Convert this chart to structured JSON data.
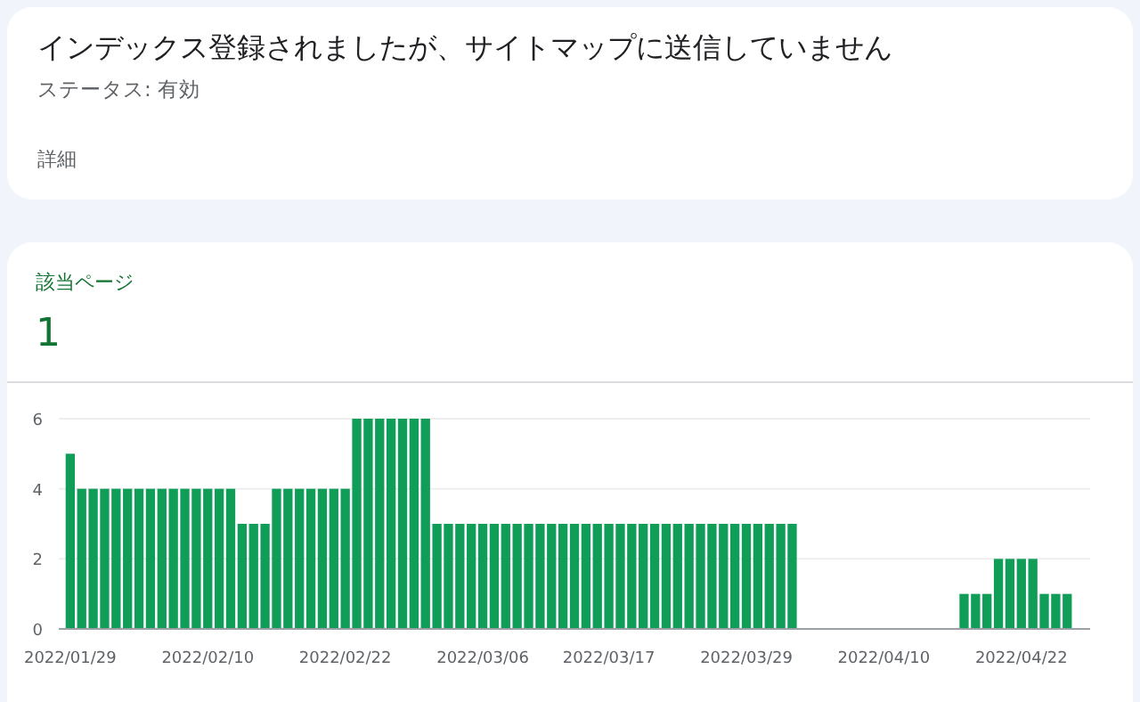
{
  "chart_data": {
    "type": "bar",
    "title": "インデックス登録されましたが、サイトマップに送信していません",
    "subtitle": "ステータス: 有効",
    "annotations": [
      "詳細",
      "該当ページ",
      "1"
    ],
    "x": [
      "2022-01-29",
      "2022-01-30",
      "2022-01-31",
      "2022-02-01",
      "2022-02-02",
      "2022-02-03",
      "2022-02-04",
      "2022-02-05",
      "2022-02-06",
      "2022-02-07",
      "2022-02-08",
      "2022-02-09",
      "2022-02-10",
      "2022-02-11",
      "2022-02-12",
      "2022-02-13",
      "2022-02-14",
      "2022-02-15",
      "2022-02-16",
      "2022-02-17",
      "2022-02-18",
      "2022-02-19",
      "2022-02-20",
      "2022-02-21",
      "2022-02-22",
      "2022-02-23",
      "2022-02-24",
      "2022-02-25",
      "2022-02-26",
      "2022-02-27",
      "2022-02-28",
      "2022-03-01",
      "2022-03-02",
      "2022-03-03",
      "2022-03-04",
      "2022-03-05",
      "2022-03-06",
      "2022-03-07",
      "2022-03-08",
      "2022-03-09",
      "2022-03-10",
      "2022-03-11",
      "2022-03-12",
      "2022-03-13",
      "2022-03-14",
      "2022-03-15",
      "2022-03-16",
      "2022-03-17",
      "2022-03-18",
      "2022-03-19",
      "2022-03-20",
      "2022-03-21",
      "2022-03-22",
      "2022-03-23",
      "2022-03-24",
      "2022-03-25",
      "2022-03-26",
      "2022-03-27",
      "2022-03-28",
      "2022-03-29",
      "2022-03-30",
      "2022-03-31",
      "2022-04-01",
      "2022-04-02",
      "2022-04-03",
      "2022-04-04",
      "2022-04-05",
      "2022-04-06",
      "2022-04-07",
      "2022-04-08",
      "2022-04-09",
      "2022-04-10",
      "2022-04-11",
      "2022-04-12",
      "2022-04-13",
      "2022-04-14",
      "2022-04-15",
      "2022-04-16",
      "2022-04-17",
      "2022-04-18",
      "2022-04-19",
      "2022-04-20",
      "2022-04-21",
      "2022-04-22",
      "2022-04-23",
      "2022-04-24",
      "2022-04-25",
      "2022-04-26"
    ],
    "values": [
      5,
      4,
      4,
      4,
      4,
      4,
      4,
      4,
      4,
      4,
      4,
      4,
      4,
      4,
      4,
      3,
      3,
      3,
      4,
      4,
      4,
      4,
      4,
      4,
      4,
      6,
      6,
      6,
      6,
      6,
      6,
      6,
      3,
      3,
      3,
      3,
      3,
      3,
      3,
      3,
      3,
      3,
      3,
      3,
      3,
      3,
      3,
      3,
      3,
      3,
      3,
      3,
      3,
      3,
      3,
      3,
      3,
      3,
      3,
      3,
      3,
      3,
      3,
      3,
      0,
      0,
      0,
      0,
      0,
      0,
      0,
      0,
      0,
      0,
      0,
      0,
      0,
      0,
      1,
      1,
      1,
      2,
      2,
      2,
      2,
      1,
      1,
      1
    ],
    "color": "#0f9d58",
    "xlim": [
      "2022-01-28",
      "2022-04-28"
    ],
    "xticks": [
      {
        "value": "2022-01-29",
        "label": "2022/01/29"
      },
      {
        "value": "2022-02-10",
        "label": "2022/02/10"
      },
      {
        "value": "2022-02-22",
        "label": "2022/02/22"
      },
      {
        "value": "2022-03-06",
        "label": "2022/03/06"
      },
      {
        "value": "2022-03-17",
        "label": "2022/03/17"
      },
      {
        "value": "2022-03-29",
        "label": "2022/03/29"
      },
      {
        "value": "2022-04-10",
        "label": "2022/04/10"
      },
      {
        "value": "2022-04-22",
        "label": "2022/04/22"
      }
    ],
    "ylim": [
      0,
      6
    ],
    "yticks": [
      0,
      2,
      4,
      6
    ],
    "grid": "y"
  }
}
